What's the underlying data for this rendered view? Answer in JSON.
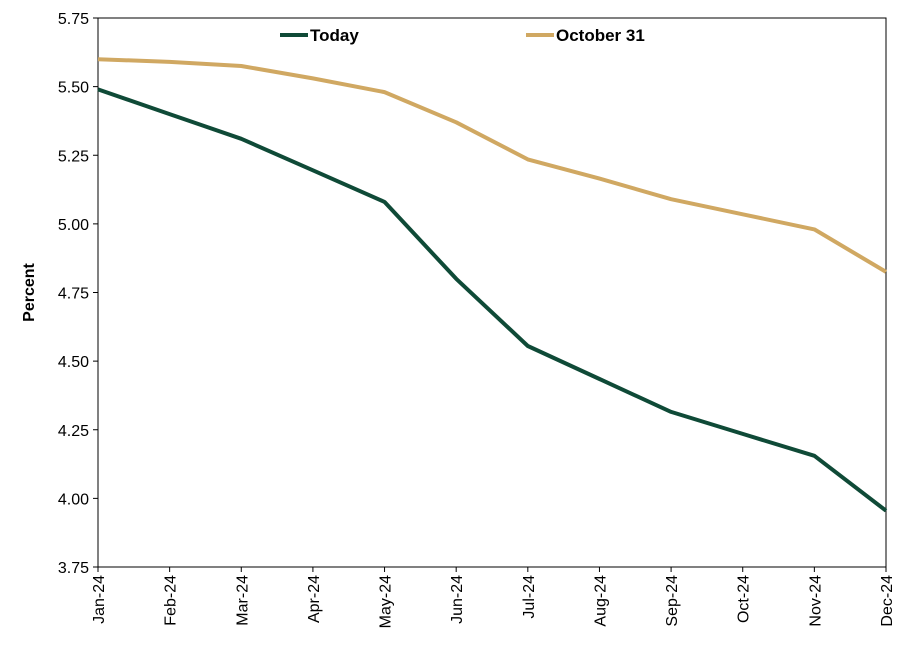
{
  "chart_data": {
    "type": "line",
    "title": "",
    "xlabel": "",
    "ylabel": "Percent",
    "ylim": [
      3.75,
      5.75
    ],
    "yticks": [
      "5.75",
      "5.50",
      "5.25",
      "5.00",
      "4.75",
      "4.50",
      "4.25",
      "4.00",
      "3.75"
    ],
    "categories": [
      "Jan-24",
      "Feb-24",
      "Mar-24",
      "Apr-24",
      "May-24",
      "Jun-24",
      "Jul-24",
      "Aug-24",
      "Sep-24",
      "Oct-24",
      "Nov-24",
      "Dec-24"
    ],
    "series": [
      {
        "name": "Today",
        "color": "#0f4a37",
        "values": [
          5.49,
          5.4,
          5.31,
          5.195,
          5.08,
          4.8,
          4.555,
          4.435,
          4.315,
          4.235,
          4.155,
          3.955
        ]
      },
      {
        "name": "October 31",
        "color": "#d0a862",
        "values": [
          5.6,
          5.59,
          5.575,
          5.53,
          5.48,
          5.37,
          5.235,
          5.165,
          5.09,
          5.035,
          4.98,
          4.825
        ]
      }
    ],
    "grid": false,
    "legend_position": "top"
  }
}
